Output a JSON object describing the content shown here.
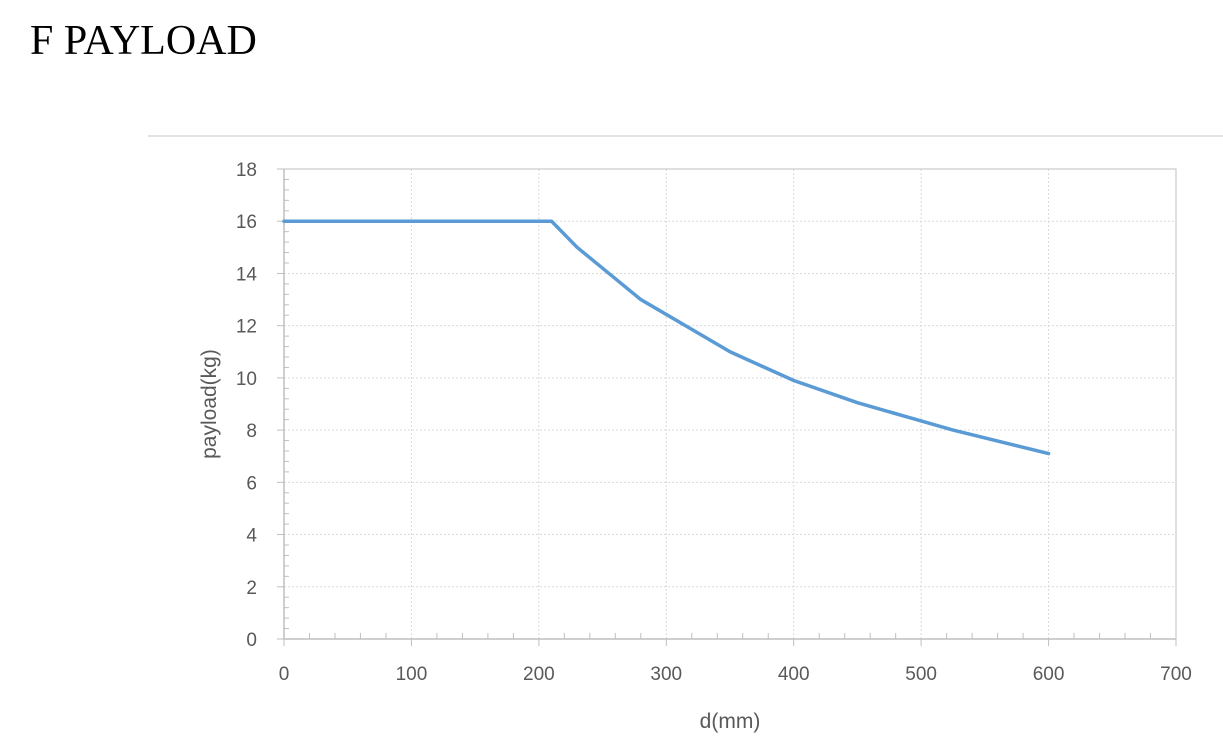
{
  "page": {
    "heading": "F PAYLOAD"
  },
  "chart_data": {
    "type": "line",
    "title": "",
    "xlabel": "d(mm)",
    "ylabel": "payload(kg)",
    "xlim": [
      0,
      700
    ],
    "ylim": [
      0,
      18
    ],
    "x_ticks": [
      0,
      100,
      200,
      300,
      400,
      500,
      600,
      700
    ],
    "y_ticks": [
      0,
      2,
      4,
      6,
      8,
      10,
      12,
      14,
      16,
      18
    ],
    "grid": true,
    "legend": "none",
    "series": [
      {
        "color": "#5b9bd5",
        "x": [
          0,
          210,
          230,
          255,
          280,
          315,
          350,
          400,
          450,
          500,
          525,
          600
        ],
        "y": [
          16,
          16,
          15,
          14,
          13,
          12,
          11,
          9.9,
          9.05,
          8.35,
          8.0,
          7.1
        ]
      }
    ],
    "colors": {
      "grid": "#d9d9d9",
      "axis": "#bfbfbf",
      "text": "#595959"
    }
  }
}
